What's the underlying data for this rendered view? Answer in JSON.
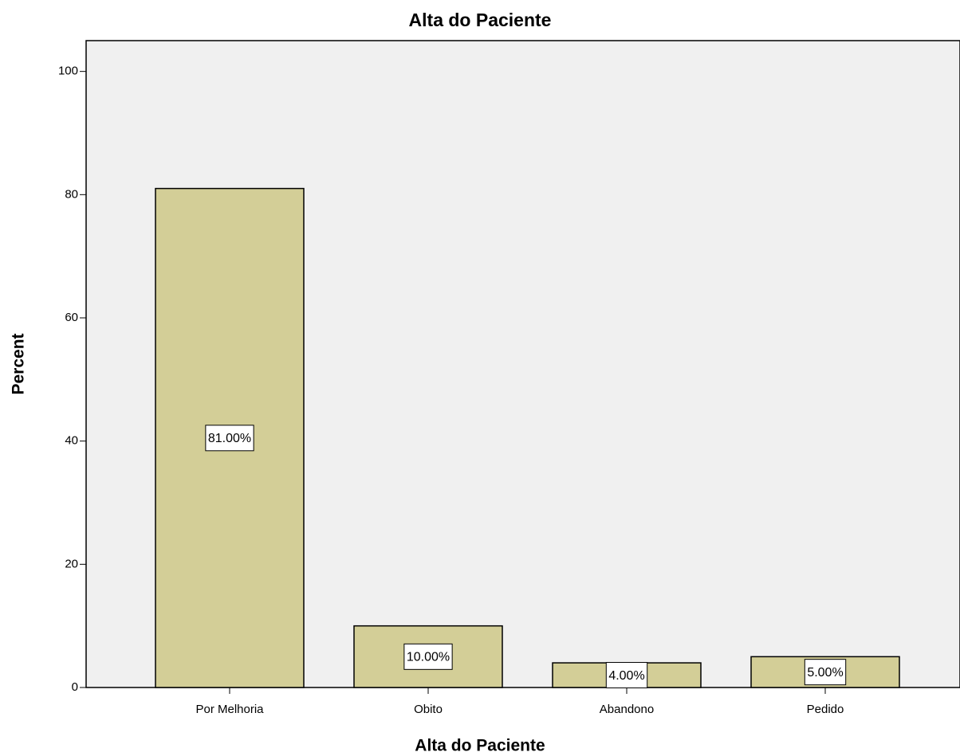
{
  "chart_data": {
    "type": "bar",
    "title": "Alta do Paciente",
    "x_label": "Alta do Paciente",
    "y_label": "Percent",
    "categories": [
      "Por Melhoria",
      "Obito",
      "Abandono",
      "Pedido"
    ],
    "values": [
      81,
      10,
      4,
      5
    ],
    "value_labels": [
      "81.00%",
      "10.00%",
      "4.00%",
      "5.00%"
    ],
    "color": "#d3ce97",
    "ylim": [
      0,
      105
    ],
    "yticks": [
      0,
      20,
      40,
      60,
      80,
      100
    ],
    "grid": false
  }
}
